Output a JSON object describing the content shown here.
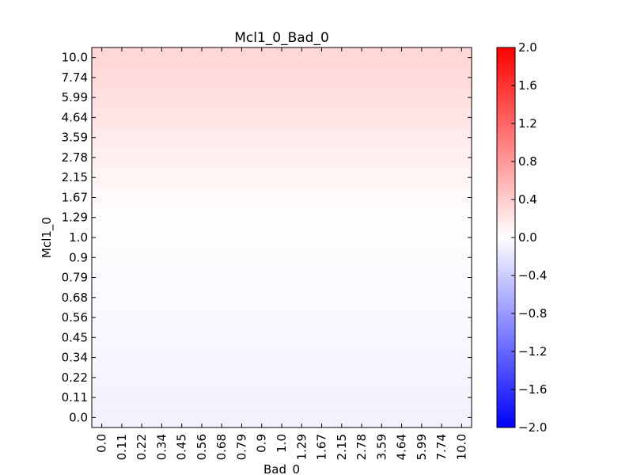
{
  "chart_data": {
    "type": "heatmap",
    "title": "Mcl1_0_Bad_0",
    "xlabel": "Bad_0",
    "ylabel": "Mcl1_0",
    "x_ticks": [
      "0.0",
      "0.11",
      "0.22",
      "0.34",
      "0.45",
      "0.56",
      "0.68",
      "0.79",
      "0.9",
      "1.0",
      "1.29",
      "1.67",
      "2.15",
      "2.78",
      "3.59",
      "4.64",
      "5.99",
      "7.74",
      "10.0"
    ],
    "y_ticks": [
      "0.0",
      "0.11",
      "0.22",
      "0.34",
      "0.45",
      "0.56",
      "0.68",
      "0.79",
      "0.9",
      "1.0",
      "1.29",
      "1.67",
      "2.15",
      "2.78",
      "3.59",
      "4.64",
      "5.99",
      "7.74",
      "10.0"
    ],
    "row_values": [
      -0.1,
      -0.09,
      -0.08,
      -0.07,
      -0.06,
      -0.05,
      -0.04,
      -0.03,
      -0.02,
      -0.01,
      0.02,
      0.05,
      0.08,
      0.12,
      0.16,
      0.2,
      0.24,
      0.28,
      0.31
    ],
    "colormap": "bwr",
    "colors": {
      "low": "#0000ff",
      "mid": "#ffffff",
      "high": "#ff0000"
    },
    "vmin": -2.0,
    "vmax": 2.0,
    "colorbar_ticks": [
      "2.0",
      "1.6",
      "1.2",
      "0.8",
      "0.4",
      "0.0",
      "−0.4",
      "−0.8",
      "−1.2",
      "−1.6",
      "−2.0"
    ]
  }
}
